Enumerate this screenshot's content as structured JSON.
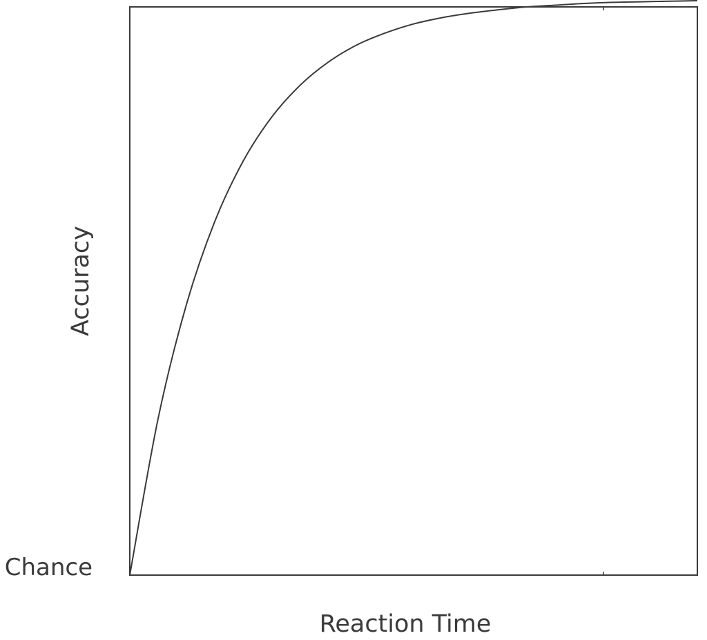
{
  "chart_data": {
    "type": "line",
    "title": "",
    "xlabel": "Reaction Time",
    "ylabel": "Accuracy",
    "y_tick_labels": [
      "Chance"
    ],
    "xlim": [
      0,
      1
    ],
    "ylim": [
      0,
      1
    ],
    "grid": false,
    "legend": "none",
    "series": [
      {
        "x": [
          0,
          0.05,
          0.1,
          0.15,
          0.2,
          0.25,
          0.3,
          0.35,
          0.4,
          0.45,
          0.5,
          0.55,
          0.6,
          0.65,
          0.7,
          0.75,
          0.8,
          0.85,
          0.9,
          0.95,
          1.0
        ],
        "y": [
          0,
          0.276,
          0.477,
          0.623,
          0.729,
          0.806,
          0.862,
          0.903,
          0.933,
          0.954,
          0.97,
          0.981,
          0.989,
          0.995,
          1.0,
          1.003,
          1.006,
          1.008,
          1.009,
          1.01,
          1.011
        ]
      }
    ],
    "colors": {
      "line": "#3a3a3a",
      "axes": "#3a3a3a"
    }
  }
}
